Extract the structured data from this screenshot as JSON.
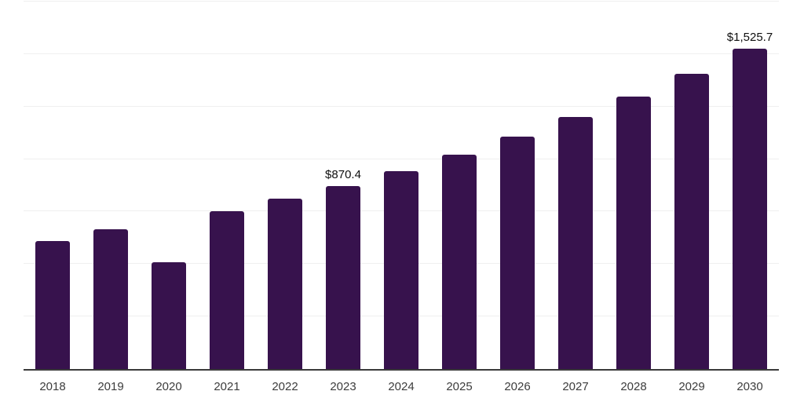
{
  "chart_data": {
    "type": "bar",
    "title": "",
    "xlabel": "",
    "ylabel": "",
    "categories": [
      "2018",
      "2019",
      "2020",
      "2021",
      "2022",
      "2023",
      "2024",
      "2025",
      "2026",
      "2027",
      "2028",
      "2029",
      "2030"
    ],
    "values": [
      610,
      665,
      510,
      750,
      810,
      870.4,
      943,
      1021.6,
      1106.9,
      1199.2,
      1299.3,
      1407.7,
      1525.7
    ],
    "bar_labels": [
      "",
      "",
      "",
      "",
      "",
      "$870.4",
      "",
      "",
      "",
      "",
      "",
      "",
      "$1,525.7"
    ],
    "ylim": [
      0,
      1750
    ],
    "gridline_step": 250,
    "grid": true,
    "legend": "none",
    "bar_color": "#37124D",
    "gridline_color": "#efefef",
    "axis_line_color": "#3a3a3a",
    "tick_label_color": "#3c3c3c",
    "data_label_color": "#0f0f0f"
  }
}
